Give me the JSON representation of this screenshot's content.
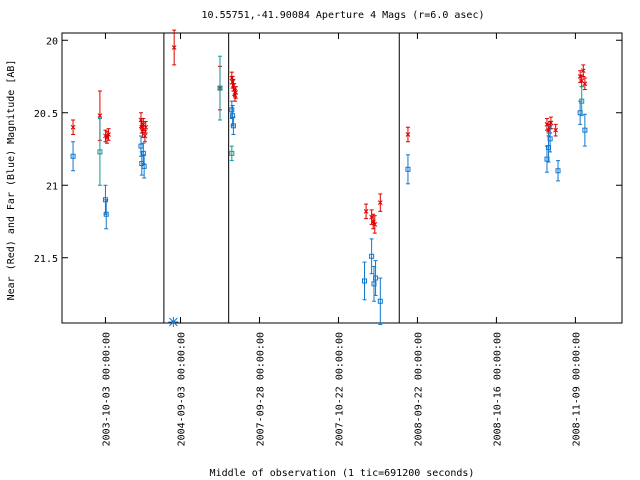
{
  "chart_data": {
    "type": "scatter",
    "title": "10.55751,-41.90084   Aperture 4 Mags (r=6.0 asec)",
    "xlabel": "Middle of observation (1 tic=691200 seconds)",
    "ylabel": "Near (Red) and Far (Blue) Magnitude [AB]",
    "ylim": [
      21.95,
      19.95
    ],
    "y_reversed": true,
    "yticks": [
      20,
      20.5,
      21,
      21.5
    ],
    "ytick_labels": [
      "20",
      "20.5",
      "21",
      "21.5"
    ],
    "xticks": [
      {
        "x": 0.55,
        "label": "2003-10-03 00:00:00"
      },
      {
        "x": 1.5,
        "label": "2004-09-03 00:00:00"
      },
      {
        "x": 2.5,
        "label": "2007-09-28 00:00:00"
      },
      {
        "x": 3.5,
        "label": "2007-10-22 00:00:00"
      },
      {
        "x": 4.5,
        "label": "2008-09-22 00:00:00"
      },
      {
        "x": 5.5,
        "label": "2008-10-16 00:00:00"
      },
      {
        "x": 6.5,
        "label": "2008-11-09 00:00:00"
      }
    ],
    "xlim": [
      0,
      7.09
    ],
    "segment_breaks": [
      1.29,
      2.11,
      4.27
    ],
    "colors": {
      "near": "#dd0000",
      "far": "#1177cc",
      "far_alt": "#119999",
      "marker_star": "#1177cc"
    },
    "series": [
      {
        "name": "Near (Red)",
        "marker": "x",
        "points": [
          {
            "x": 0.14,
            "y": 20.6,
            "err": 0.05
          },
          {
            "x": 0.48,
            "y": 20.52,
            "err": 0.17
          },
          {
            "x": 0.55,
            "y": 20.66,
            "err": 0.04
          },
          {
            "x": 0.57,
            "y": 20.67,
            "err": 0.04
          },
          {
            "x": 0.59,
            "y": 20.65,
            "err": 0.04
          },
          {
            "x": 1.0,
            "y": 20.55,
            "err": 0.05
          },
          {
            "x": 1.01,
            "y": 20.6,
            "err": 0.04
          },
          {
            "x": 1.02,
            "y": 20.63,
            "err": 0.04
          },
          {
            "x": 1.03,
            "y": 20.58,
            "err": 0.04
          },
          {
            "x": 1.05,
            "y": 20.66,
            "err": 0.04
          },
          {
            "x": 1.06,
            "y": 20.6,
            "err": 0.04
          },
          {
            "x": 1.42,
            "y": 20.05,
            "err": 0.12
          },
          {
            "x": 2.0,
            "y": 20.33,
            "err": 0.15
          },
          {
            "x": 2.15,
            "y": 20.26,
            "err": 0.04
          },
          {
            "x": 2.16,
            "y": 20.29,
            "err": 0.04
          },
          {
            "x": 2.17,
            "y": 20.31,
            "err": 0.04
          },
          {
            "x": 2.18,
            "y": 20.34,
            "err": 0.04
          },
          {
            "x": 2.19,
            "y": 20.38,
            "err": 0.04
          },
          {
            "x": 2.2,
            "y": 20.36,
            "err": 0.04
          },
          {
            "x": 3.85,
            "y": 21.18,
            "err": 0.05
          },
          {
            "x": 3.92,
            "y": 21.22,
            "err": 0.05
          },
          {
            "x": 3.94,
            "y": 21.25,
            "err": 0.05
          },
          {
            "x": 3.96,
            "y": 21.27,
            "err": 0.06
          },
          {
            "x": 4.03,
            "y": 21.12,
            "err": 0.06
          },
          {
            "x": 4.38,
            "y": 20.65,
            "err": 0.05
          },
          {
            "x": 6.14,
            "y": 20.58,
            "err": 0.04
          },
          {
            "x": 6.16,
            "y": 20.62,
            "err": 0.04
          },
          {
            "x": 6.18,
            "y": 20.6,
            "err": 0.04
          },
          {
            "x": 6.19,
            "y": 20.57,
            "err": 0.04
          },
          {
            "x": 6.25,
            "y": 20.62,
            "err": 0.04
          },
          {
            "x": 6.56,
            "y": 20.25,
            "err": 0.04
          },
          {
            "x": 6.58,
            "y": 20.28,
            "err": 0.04
          },
          {
            "x": 6.6,
            "y": 20.21,
            "err": 0.04
          },
          {
            "x": 6.62,
            "y": 20.3,
            "err": 0.04
          }
        ]
      },
      {
        "name": "Far (Blue)",
        "marker": "square",
        "points": [
          {
            "x": 0.14,
            "y": 20.8,
            "err": 0.1
          },
          {
            "x": 0.48,
            "y": 20.77,
            "err": 0.23,
            "alt": true
          },
          {
            "x": 0.55,
            "y": 21.1,
            "err": 0.1
          },
          {
            "x": 0.56,
            "y": 21.2,
            "err": 0.1
          },
          {
            "x": 1.0,
            "y": 20.73,
            "err": 0.07
          },
          {
            "x": 1.01,
            "y": 20.85,
            "err": 0.08
          },
          {
            "x": 1.03,
            "y": 20.78,
            "err": 0.07
          },
          {
            "x": 1.04,
            "y": 20.87,
            "err": 0.08
          },
          {
            "x": 2.0,
            "y": 20.33,
            "err": 0.22,
            "alt": true
          },
          {
            "x": 2.15,
            "y": 20.48,
            "err": 0.06
          },
          {
            "x": 2.16,
            "y": 20.52,
            "err": 0.07
          },
          {
            "x": 2.17,
            "y": 20.59,
            "err": 0.06
          },
          {
            "x": 2.15,
            "y": 20.78,
            "err": 0.05,
            "alt": true
          },
          {
            "x": 3.83,
            "y": 21.66,
            "err": 0.13
          },
          {
            "x": 3.92,
            "y": 21.49,
            "err": 0.12
          },
          {
            "x": 3.95,
            "y": 21.68,
            "err": 0.12
          },
          {
            "x": 3.97,
            "y": 21.64,
            "err": 0.12
          },
          {
            "x": 4.03,
            "y": 21.8,
            "err": 0.16
          },
          {
            "x": 4.38,
            "y": 20.89,
            "err": 0.1
          },
          {
            "x": 6.14,
            "y": 20.82,
            "err": 0.09
          },
          {
            "x": 6.16,
            "y": 20.74,
            "err": 0.1
          },
          {
            "x": 6.18,
            "y": 20.68,
            "err": 0.09
          },
          {
            "x": 6.28,
            "y": 20.9,
            "err": 0.07
          },
          {
            "x": 6.56,
            "y": 20.5,
            "err": 0.08
          },
          {
            "x": 6.58,
            "y": 20.42,
            "err": 0.1,
            "alt": true
          },
          {
            "x": 6.62,
            "y": 20.62,
            "err": 0.11
          }
        ]
      }
    ],
    "star_marker": {
      "x": 1.41,
      "y": 21.95
    }
  }
}
